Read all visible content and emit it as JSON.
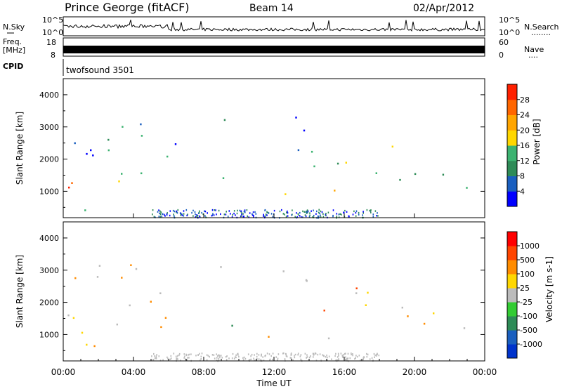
{
  "header": {
    "station": "Prince George (fitACF)",
    "beam": "Beam 14",
    "date": "02/Apr/2012"
  },
  "top_panels": {
    "nsky_label": "N.Sky",
    "nsearch_label": "N.Search",
    "nsearch_dots": "........",
    "freq_label_1": "Freq.",
    "freq_label_2": "[MHz]",
    "nave_label": "Nave",
    "nave_dots": "....",
    "cpid_label": "CPID",
    "cpid_value": "twofsound 3501",
    "noise_ticks": [
      "10^5",
      "10^0"
    ],
    "freq_ticks": [
      "18",
      "8"
    ],
    "nave_ticks": [
      "60",
      "0"
    ]
  },
  "chart_data": [
    {
      "type": "heatmap",
      "name": "power",
      "ylabel": "Slant Range [km]",
      "ylim": [
        180,
        4500
      ],
      "yticks": [
        1000,
        2000,
        3000,
        4000
      ],
      "colorbar_label": "Power [dB]",
      "colorbar_ticks": [
        "28",
        "24",
        "20",
        "16",
        "12",
        "8",
        "4"
      ],
      "colors": [
        "#0000ff",
        "#1a5fbf",
        "#2e8b57",
        "#3cb371",
        "#ffd700",
        "#ffa500",
        "#ff6600",
        "#ff2000"
      ]
    },
    {
      "type": "heatmap",
      "name": "velocity",
      "ylabel": "Slant Range [km]",
      "ylim": [
        180,
        4500
      ],
      "yticks": [
        1000,
        2000,
        3000,
        4000
      ],
      "colorbar_label": "Velocity [m s-1]",
      "colorbar_ticks": [
        "1000",
        "500",
        "100",
        "25",
        "-25",
        "-100",
        "-500",
        "-1000"
      ],
      "colors": [
        "#0033cc",
        "#1a5fbf",
        "#2e8b57",
        "#33cc33",
        "#bbbbbb",
        "#ffd700",
        "#ff8c00",
        "#ff4500",
        "#ff0000"
      ]
    }
  ],
  "xaxis": {
    "label": "Time UT",
    "ticks": [
      "00:00",
      "04:00",
      "08:00",
      "12:00",
      "16:00",
      "20:00",
      "00:00"
    ]
  }
}
